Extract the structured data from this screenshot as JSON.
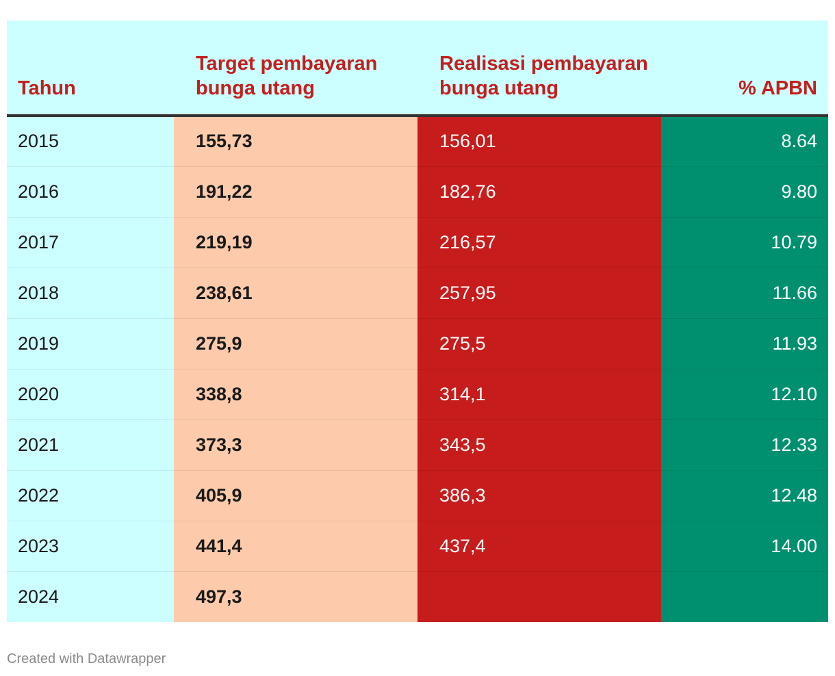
{
  "chart_data": {
    "type": "table",
    "columns": [
      "Tahun",
      "Target pembayaran bunga utang",
      "Realisasi pembayaran bunga utang",
      "% APBN"
    ],
    "rows": [
      {
        "year": "2015",
        "target": "155,73",
        "realisasi": "156,01",
        "pct": "8.64"
      },
      {
        "year": "2016",
        "target": "191,22",
        "realisasi": "182,76",
        "pct": "9.80"
      },
      {
        "year": "2017",
        "target": "219,19",
        "realisasi": "216,57",
        "pct": "10.79"
      },
      {
        "year": "2018",
        "target": "238,61",
        "realisasi": "257,95",
        "pct": "11.66"
      },
      {
        "year": "2019",
        "target": "275,9",
        "realisasi": "275,5",
        "pct": "11.93"
      },
      {
        "year": "2020",
        "target": "338,8",
        "realisasi": "314,1",
        "pct": "12.10"
      },
      {
        "year": "2021",
        "target": "373,3",
        "realisasi": "343,5",
        "pct": "12.33"
      },
      {
        "year": "2022",
        "target": "405,9",
        "realisasi": "386,3",
        "pct": "12.48"
      },
      {
        "year": "2023",
        "target": "441,4",
        "realisasi": "437,4",
        "pct": "14.00"
      },
      {
        "year": "2024",
        "target": "497,3",
        "realisasi": "",
        "pct": ""
      }
    ]
  },
  "colors": {
    "header_bg": "#ccffff",
    "header_text": "#c41e1e",
    "year_col": "#ccffff",
    "target_col": "#fdcbac",
    "realisasi_col": "#c71c1c",
    "pct_col": "#00906f"
  },
  "footer": {
    "credit": "Created with Datawrapper"
  }
}
